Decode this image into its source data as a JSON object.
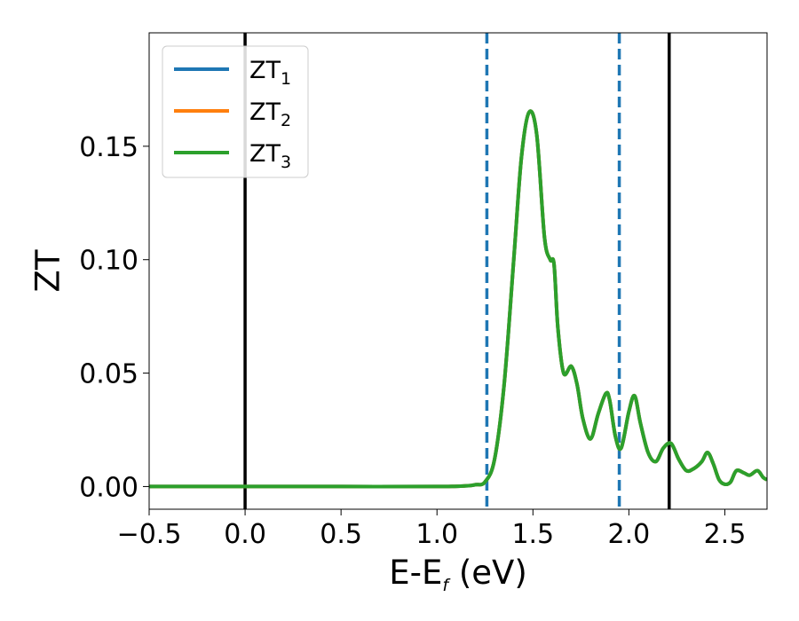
{
  "chart_data": {
    "type": "line",
    "xlabel": "E-E",
    "xlabel_subscript": "f",
    "xlabel_unit": "(eV)",
    "ylabel": "ZT",
    "xlim": [
      -0.5,
      2.72
    ],
    "ylim": [
      -0.01,
      0.2
    ],
    "xticks": [
      -0.5,
      0.0,
      0.5,
      1.0,
      1.5,
      2.0,
      2.5
    ],
    "xtick_labels": [
      "−0.5",
      "0.0",
      "0.5",
      "1.0",
      "1.5",
      "2.0",
      "2.5"
    ],
    "yticks": [
      0.0,
      0.05,
      0.1,
      0.15
    ],
    "ytick_labels": [
      "0.00",
      "0.05",
      "0.10",
      "0.15"
    ],
    "grid": false,
    "legend_position": "top-left",
    "series": [
      {
        "name": "ZT",
        "subscript": "1",
        "color": "#1f77b4"
      },
      {
        "name": "ZT",
        "subscript": "2",
        "color": "#ff7f0e"
      },
      {
        "name": "ZT",
        "subscript": "3",
        "color": "#2ca02c"
      }
    ],
    "curve": {
      "color": "#2ca02c",
      "x": [
        -0.5,
        0.0,
        0.5,
        1.0,
        1.15,
        1.2,
        1.25,
        1.3,
        1.35,
        1.4,
        1.44,
        1.48,
        1.52,
        1.56,
        1.59,
        1.61,
        1.63,
        1.66,
        1.7,
        1.73,
        1.76,
        1.8,
        1.84,
        1.88,
        1.9,
        1.93,
        1.96,
        2.0,
        2.03,
        2.06,
        2.1,
        2.14,
        2.18,
        2.22,
        2.26,
        2.3,
        2.34,
        2.38,
        2.41,
        2.44,
        2.47,
        2.5,
        2.53,
        2.56,
        2.6,
        2.63,
        2.67,
        2.7,
        2.72
      ],
      "y": [
        0.0,
        0.0,
        0.0,
        0.0,
        0.0003,
        0.0008,
        0.002,
        0.012,
        0.045,
        0.1,
        0.145,
        0.165,
        0.155,
        0.11,
        0.1,
        0.098,
        0.07,
        0.05,
        0.053,
        0.045,
        0.03,
        0.021,
        0.032,
        0.041,
        0.038,
        0.022,
        0.017,
        0.033,
        0.04,
        0.028,
        0.015,
        0.011,
        0.017,
        0.019,
        0.012,
        0.007,
        0.008,
        0.011,
        0.015,
        0.01,
        0.003,
        0.001,
        0.002,
        0.007,
        0.006,
        0.005,
        0.007,
        0.004,
        0.003
      ]
    },
    "vlines": [
      {
        "x": 0.0,
        "color": "#000000",
        "style": "solid"
      },
      {
        "x": 2.21,
        "color": "#000000",
        "style": "solid"
      },
      {
        "x": 1.26,
        "color": "#1f77b4",
        "style": "dashed"
      },
      {
        "x": 1.95,
        "color": "#1f77b4",
        "style": "dashed"
      }
    ]
  }
}
